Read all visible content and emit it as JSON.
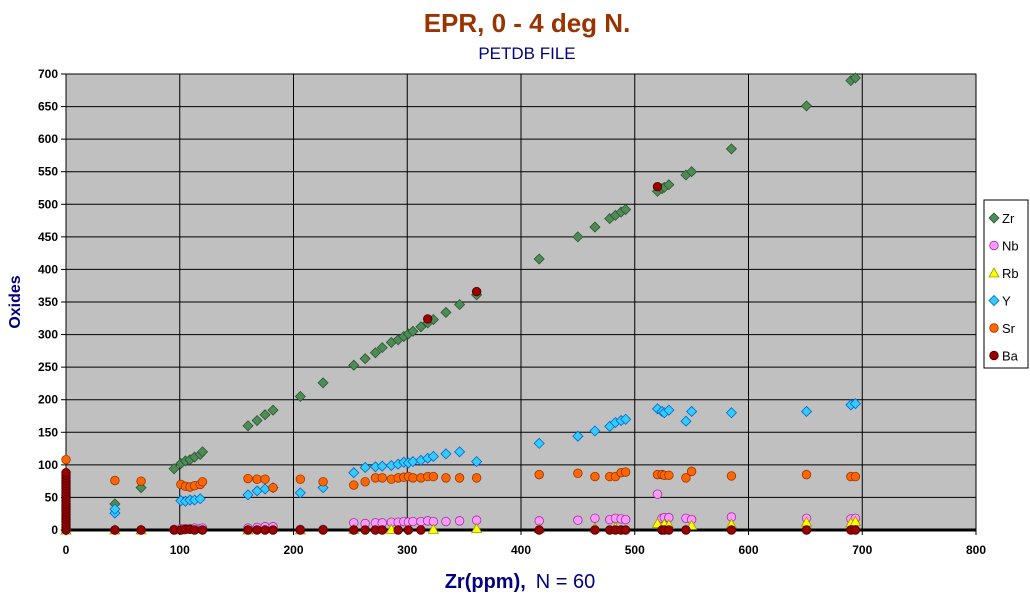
{
  "chart_data": {
    "type": "scatter",
    "title": "EPR, 0 - 4 deg N.",
    "subtitle": "PETDB FILE",
    "xlabel_main": "Zr(ppm),",
    "xlabel_note": "N = 60",
    "ylabel": "Oxides",
    "xlim": [
      0,
      800
    ],
    "ylim": [
      0,
      700
    ],
    "x_ticks": [
      0,
      100,
      200,
      300,
      400,
      500,
      600,
      700,
      800
    ],
    "y_ticks": [
      0,
      50,
      100,
      150,
      200,
      250,
      300,
      350,
      400,
      450,
      500,
      550,
      600,
      650,
      700
    ],
    "grid": true,
    "legend_position": "right",
    "colors": {
      "title": "#993300",
      "subtitle": "#000080",
      "axis_label": "#000080",
      "plot_background": "#c0c0c0",
      "grid": "#000000"
    },
    "series": [
      {
        "name": "Zr",
        "marker": "diamond",
        "fill": "#4d8c57",
        "stroke": "#2e5530",
        "points": [
          [
            0,
            0
          ],
          [
            43,
            40
          ],
          [
            66,
            65
          ],
          [
            95,
            94
          ],
          [
            101,
            102
          ],
          [
            105,
            106
          ],
          [
            109,
            108
          ],
          [
            113,
            112
          ],
          [
            118,
            116
          ],
          [
            120,
            120
          ],
          [
            160,
            160
          ],
          [
            168,
            168
          ],
          [
            175,
            177
          ],
          [
            182,
            184
          ],
          [
            206,
            205
          ],
          [
            226,
            226
          ],
          [
            253,
            253
          ],
          [
            263,
            263
          ],
          [
            272,
            272
          ],
          [
            278,
            280
          ],
          [
            286,
            288
          ],
          [
            292,
            292
          ],
          [
            297,
            297
          ],
          [
            301,
            301
          ],
          [
            305,
            305
          ],
          [
            312,
            312
          ],
          [
            318,
            318
          ],
          [
            323,
            323
          ],
          [
            334,
            334
          ],
          [
            346,
            346
          ],
          [
            361,
            361
          ],
          [
            416,
            416
          ],
          [
            450,
            450
          ],
          [
            465,
            465
          ],
          [
            478,
            478
          ],
          [
            483,
            483
          ],
          [
            488,
            488
          ],
          [
            492,
            492
          ],
          [
            520,
            520
          ],
          [
            524,
            524
          ],
          [
            526,
            526
          ],
          [
            530,
            530
          ],
          [
            545,
            545
          ],
          [
            550,
            550
          ],
          [
            585,
            585
          ],
          [
            651,
            651
          ],
          [
            690,
            690
          ],
          [
            694,
            694
          ]
        ]
      },
      {
        "name": "Nb",
        "marker": "circle",
        "fill": "#ff99ff",
        "stroke": "#993399",
        "points": [
          [
            0,
            0
          ],
          [
            43,
            0
          ],
          [
            66,
            0
          ],
          [
            95,
            1
          ],
          [
            101,
            2
          ],
          [
            105,
            2
          ],
          [
            109,
            2
          ],
          [
            113,
            3
          ],
          [
            118,
            2
          ],
          [
            120,
            3
          ],
          [
            160,
            3
          ],
          [
            168,
            4
          ],
          [
            175,
            5
          ],
          [
            182,
            5
          ],
          [
            206,
            1
          ],
          [
            226,
            1
          ],
          [
            253,
            11
          ],
          [
            263,
            10
          ],
          [
            272,
            11
          ],
          [
            278,
            11
          ],
          [
            286,
            12
          ],
          [
            292,
            12
          ],
          [
            297,
            13
          ],
          [
            301,
            12
          ],
          [
            305,
            13
          ],
          [
            312,
            13
          ],
          [
            318,
            14
          ],
          [
            323,
            13
          ],
          [
            334,
            13
          ],
          [
            346,
            14
          ],
          [
            361,
            15
          ],
          [
            416,
            14
          ],
          [
            450,
            15
          ],
          [
            465,
            18
          ],
          [
            478,
            16
          ],
          [
            483,
            18
          ],
          [
            488,
            17
          ],
          [
            492,
            16
          ],
          [
            520,
            55
          ],
          [
            524,
            18
          ],
          [
            526,
            19
          ],
          [
            530,
            19
          ],
          [
            545,
            18
          ],
          [
            550,
            16
          ],
          [
            585,
            20
          ],
          [
            651,
            18
          ],
          [
            690,
            17
          ],
          [
            694,
            18
          ]
        ]
      },
      {
        "name": "Rb",
        "marker": "triangle",
        "fill": "#ffff00",
        "stroke": "#999900",
        "points": [
          [
            0,
            0
          ],
          [
            43,
            0
          ],
          [
            66,
            0
          ],
          [
            101,
            0
          ],
          [
            109,
            1
          ],
          [
            160,
            0
          ],
          [
            206,
            0
          ],
          [
            253,
            1
          ],
          [
            286,
            1
          ],
          [
            323,
            1
          ],
          [
            361,
            2
          ],
          [
            416,
            2
          ],
          [
            465,
            3
          ],
          [
            483,
            4
          ],
          [
            520,
            10
          ],
          [
            526,
            9
          ],
          [
            530,
            8
          ],
          [
            550,
            7
          ],
          [
            585,
            9
          ],
          [
            651,
            12
          ],
          [
            690,
            11
          ],
          [
            694,
            13
          ]
        ]
      },
      {
        "name": "Y",
        "marker": "diamond",
        "fill": "#33ccff",
        "stroke": "#0066cc",
        "points": [
          [
            43,
            26
          ],
          [
            43,
            32
          ],
          [
            101,
            45
          ],
          [
            105,
            44
          ],
          [
            109,
            46
          ],
          [
            113,
            46
          ],
          [
            118,
            48
          ],
          [
            160,
            54
          ],
          [
            168,
            60
          ],
          [
            175,
            63
          ],
          [
            182,
            65
          ],
          [
            206,
            57
          ],
          [
            226,
            65
          ],
          [
            253,
            88
          ],
          [
            263,
            96
          ],
          [
            272,
            97
          ],
          [
            278,
            98
          ],
          [
            286,
            99
          ],
          [
            292,
            101
          ],
          [
            297,
            104
          ],
          [
            301,
            103
          ],
          [
            305,
            105
          ],
          [
            312,
            107
          ],
          [
            318,
            110
          ],
          [
            323,
            113
          ],
          [
            334,
            117
          ],
          [
            346,
            120
          ],
          [
            361,
            105
          ],
          [
            416,
            133
          ],
          [
            450,
            144
          ],
          [
            465,
            152
          ],
          [
            478,
            159
          ],
          [
            483,
            165
          ],
          [
            488,
            168
          ],
          [
            492,
            170
          ],
          [
            520,
            186
          ],
          [
            524,
            182
          ],
          [
            526,
            180
          ],
          [
            530,
            184
          ],
          [
            545,
            167
          ],
          [
            550,
            182
          ],
          [
            585,
            180
          ],
          [
            651,
            182
          ],
          [
            690,
            192
          ],
          [
            694,
            194
          ]
        ]
      },
      {
        "name": "Sr",
        "marker": "circle",
        "fill": "#ff6600",
        "stroke": "#993300",
        "points": [
          [
            0,
            108
          ],
          [
            43,
            76
          ],
          [
            66,
            75
          ],
          [
            101,
            70
          ],
          [
            105,
            67
          ],
          [
            109,
            66
          ],
          [
            113,
            68
          ],
          [
            118,
            70
          ],
          [
            120,
            74
          ],
          [
            160,
            79
          ],
          [
            168,
            78
          ],
          [
            175,
            78
          ],
          [
            182,
            65
          ],
          [
            206,
            78
          ],
          [
            226,
            74
          ],
          [
            253,
            69
          ],
          [
            263,
            74
          ],
          [
            272,
            80
          ],
          [
            278,
            80
          ],
          [
            286,
            78
          ],
          [
            292,
            80
          ],
          [
            297,
            81
          ],
          [
            301,
            82
          ],
          [
            305,
            80
          ],
          [
            312,
            80
          ],
          [
            318,
            82
          ],
          [
            323,
            82
          ],
          [
            334,
            80
          ],
          [
            346,
            80
          ],
          [
            361,
            80
          ],
          [
            416,
            85
          ],
          [
            450,
            87
          ],
          [
            465,
            82
          ],
          [
            478,
            82
          ],
          [
            483,
            82
          ],
          [
            488,
            88
          ],
          [
            492,
            89
          ],
          [
            520,
            85
          ],
          [
            524,
            85
          ],
          [
            526,
            84
          ],
          [
            530,
            84
          ],
          [
            545,
            80
          ],
          [
            550,
            90
          ],
          [
            585,
            83
          ],
          [
            651,
            85
          ],
          [
            690,
            82
          ],
          [
            694,
            82
          ]
        ]
      },
      {
        "name": "Ba",
        "marker": "circle",
        "fill": "#990000",
        "stroke": "#4d0000",
        "points": [
          [
            0,
            0
          ],
          [
            0,
            4
          ],
          [
            0,
            8
          ],
          [
            0,
            12
          ],
          [
            0,
            16
          ],
          [
            0,
            20
          ],
          [
            0,
            24
          ],
          [
            0,
            28
          ],
          [
            0,
            32
          ],
          [
            0,
            36
          ],
          [
            0,
            40
          ],
          [
            0,
            44
          ],
          [
            0,
            48
          ],
          [
            0,
            52
          ],
          [
            0,
            56
          ],
          [
            0,
            60
          ],
          [
            0,
            64
          ],
          [
            0,
            68
          ],
          [
            0,
            72
          ],
          [
            0,
            76
          ],
          [
            0,
            80
          ],
          [
            0,
            84
          ],
          [
            0,
            88
          ],
          [
            43,
            0
          ],
          [
            66,
            0
          ],
          [
            95,
            0
          ],
          [
            101,
            0
          ],
          [
            105,
            1
          ],
          [
            109,
            1
          ],
          [
            113,
            0
          ],
          [
            120,
            0
          ],
          [
            160,
            0
          ],
          [
            168,
            0
          ],
          [
            175,
            0
          ],
          [
            182,
            0
          ],
          [
            206,
            0
          ],
          [
            226,
            0
          ],
          [
            253,
            0
          ],
          [
            263,
            0
          ],
          [
            272,
            0
          ],
          [
            278,
            0
          ],
          [
            292,
            0
          ],
          [
            301,
            0
          ],
          [
            312,
            0
          ],
          [
            318,
            324
          ],
          [
            361,
            366
          ],
          [
            416,
            0
          ],
          [
            465,
            0
          ],
          [
            478,
            0
          ],
          [
            483,
            0
          ],
          [
            488,
            0
          ],
          [
            492,
            0
          ],
          [
            520,
            527
          ],
          [
            524,
            0
          ],
          [
            526,
            0
          ],
          [
            530,
            0
          ],
          [
            545,
            0
          ],
          [
            585,
            0
          ],
          [
            651,
            0
          ],
          [
            690,
            0
          ],
          [
            694,
            0
          ]
        ]
      }
    ]
  }
}
